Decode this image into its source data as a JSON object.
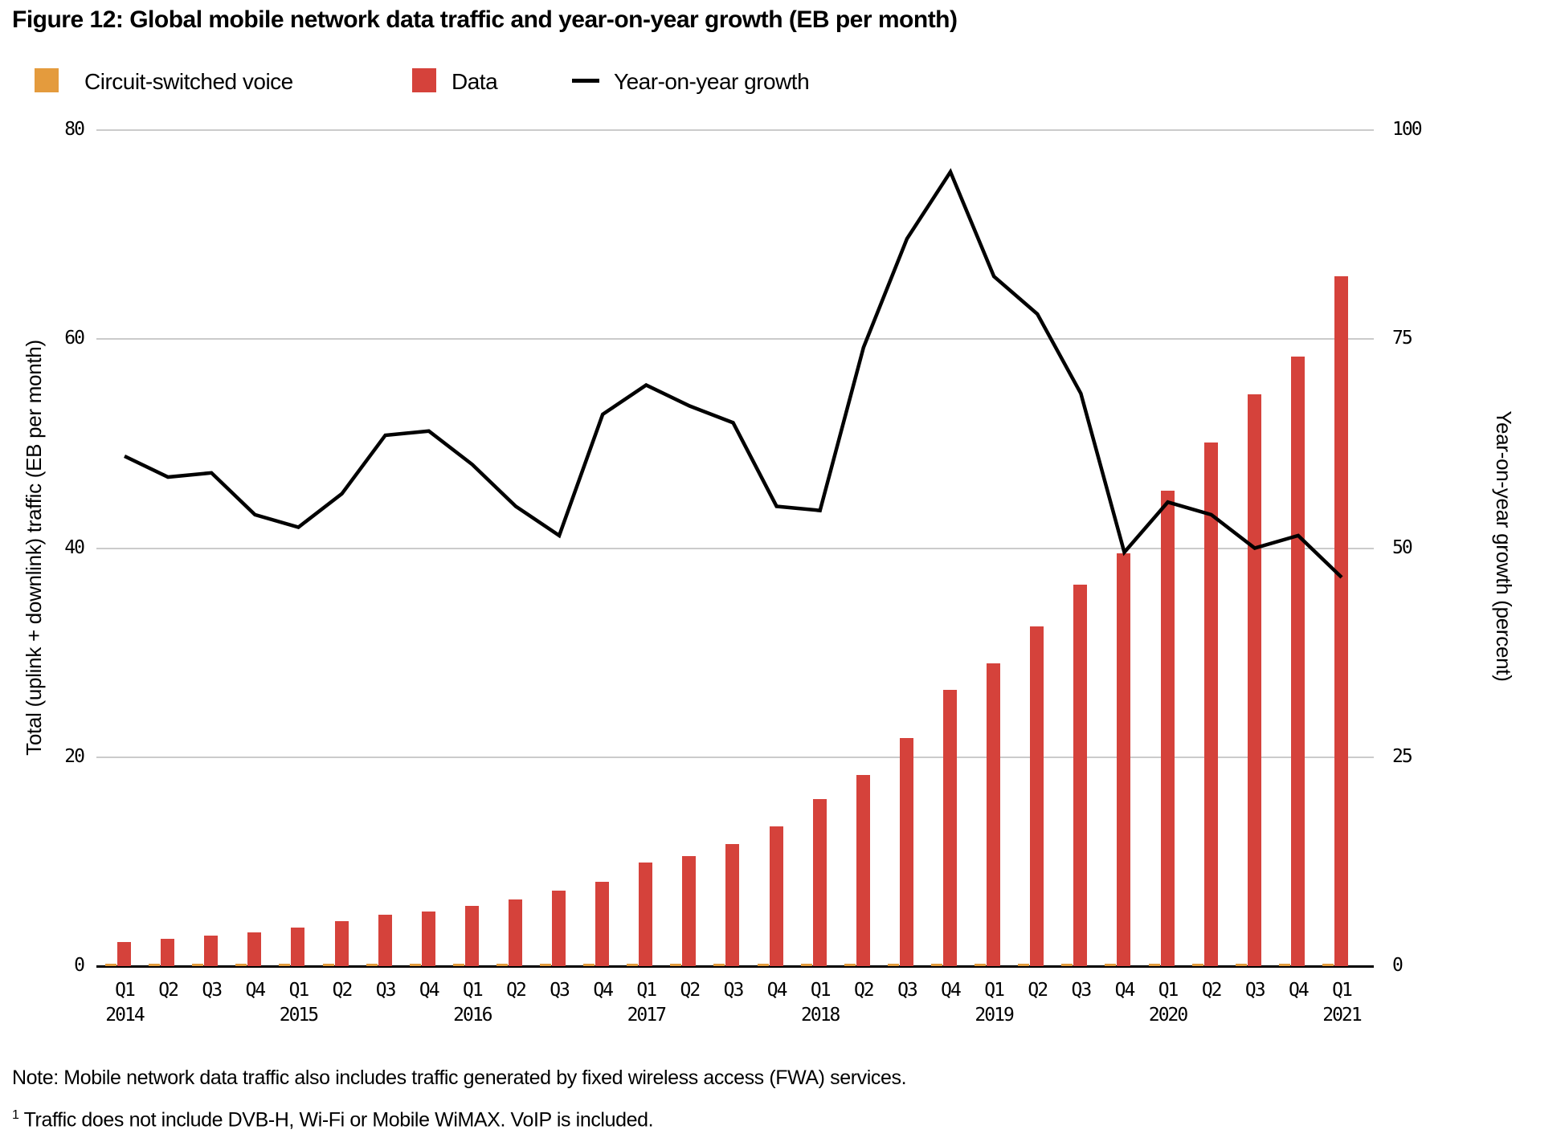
{
  "title": "Figure 12: Global mobile network data traffic and year-on-year growth (EB per month)",
  "legend": {
    "items": [
      {
        "label": "Circuit-switched voice",
        "color": "#E49B3D",
        "type": "square"
      },
      {
        "label": "Data",
        "color": "#D5423B",
        "type": "square"
      },
      {
        "label": "Year-on-year growth",
        "color": "#000000",
        "type": "line"
      }
    ]
  },
  "left_axis": {
    "title": "Total (uplink + downlink) traffic (EB per month)",
    "ticks": [
      80,
      60,
      40,
      20,
      0
    ],
    "max": 80
  },
  "right_axis": {
    "title": "Year-on-year growth (percent)",
    "ticks": [
      100,
      75,
      50,
      25,
      0
    ],
    "max": 100
  },
  "notes": {
    "note": "Note: Mobile network data traffic also includes traffic generated by fixed wireless access (FWA) services.",
    "footnote_sup": "1",
    "footnote": "Traffic does not include DVB-H, Wi-Fi or Mobile WiMAX. VoIP is included."
  },
  "colors": {
    "voice": "#E49B3D",
    "data": "#D5423B",
    "growth_line": "#000000",
    "gridline": "#cbcbcb",
    "axis": "#000000"
  },
  "chart_data": {
    "type": "bar+line",
    "categories": [
      "Q1 2014",
      "Q2 2014",
      "Q3 2014",
      "Q4 2014",
      "Q1 2015",
      "Q2 2015",
      "Q3 2015",
      "Q4 2015",
      "Q1 2016",
      "Q2 2016",
      "Q3 2016",
      "Q4 2016",
      "Q1 2017",
      "Q2 2017",
      "Q3 2017",
      "Q4 2017",
      "Q1 2018",
      "Q2 2018",
      "Q3 2018",
      "Q4 2018",
      "Q1 2019",
      "Q2 2019",
      "Q3 2019",
      "Q4 2019",
      "Q1 2020",
      "Q2 2020",
      "Q3 2020",
      "Q4 2020",
      "Q1 2021"
    ],
    "year_labels": [
      "2014",
      "2015",
      "2016",
      "2017",
      "2018",
      "2019",
      "2020",
      "2021"
    ],
    "series": [
      {
        "name": "Circuit-switched voice",
        "type": "bar",
        "axis": "left",
        "color": "#E49B3D",
        "values": [
          0.2,
          0.2,
          0.2,
          0.2,
          0.2,
          0.2,
          0.2,
          0.2,
          0.2,
          0.2,
          0.2,
          0.2,
          0.2,
          0.2,
          0.2,
          0.2,
          0.2,
          0.2,
          0.2,
          0.2,
          0.2,
          0.2,
          0.2,
          0.2,
          0.2,
          0.2,
          0.2,
          0.2,
          0.2
        ]
      },
      {
        "name": "Data",
        "type": "bar",
        "axis": "left",
        "color": "#D5423B",
        "values": [
          2.3,
          2.6,
          2.9,
          3.2,
          3.7,
          4.3,
          4.9,
          5.2,
          5.8,
          6.4,
          7.2,
          8.1,
          9.9,
          10.5,
          11.7,
          13.4,
          16.0,
          18.3,
          21.8,
          26.4,
          29.0,
          32.5,
          36.5,
          39.5,
          45.5,
          50.1,
          54.7,
          58.3,
          66.0
        ]
      },
      {
        "name": "Year-on-year growth",
        "type": "line",
        "axis": "right",
        "color": "#000000",
        "values": [
          61,
          58.5,
          59,
          54,
          52.5,
          56.5,
          63.5,
          64,
          60,
          55,
          51.5,
          66,
          69.5,
          67,
          65,
          55,
          54.5,
          74,
          87,
          95,
          82.5,
          78,
          68.5,
          49.5,
          55.5,
          54,
          50,
          51.5,
          46.5
        ]
      }
    ],
    "title": "Figure 12: Global mobile network data traffic and year-on-year growth (EB per month)",
    "xlabel": "",
    "ylabel_left": "Total (uplink + downlink) traffic (EB per month)",
    "ylabel_right": "Year-on-year growth (percent)",
    "left_ylim": [
      0,
      80
    ],
    "right_ylim": [
      0,
      100
    ],
    "grid": true,
    "legend_position": "top-left"
  }
}
